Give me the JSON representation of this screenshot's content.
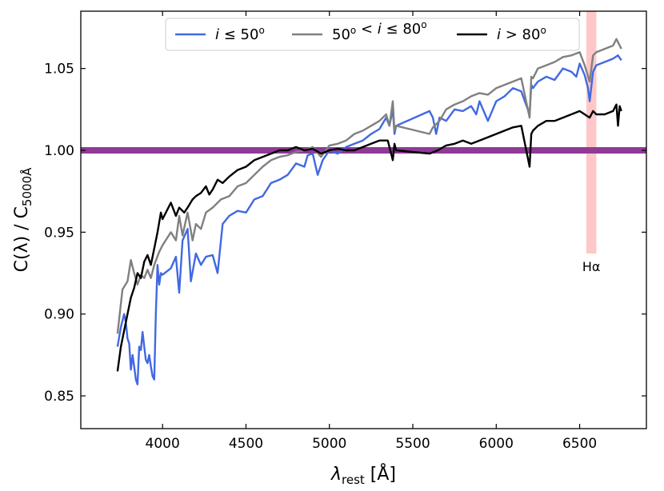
{
  "chart_data": {
    "type": "line",
    "title": "",
    "xlabel": {
      "main": "λ",
      "sub": "rest",
      "unit": " [Å]"
    },
    "ylabel": {
      "main": "C(λ) / C",
      "sub": "5000Å"
    },
    "xlim": [
      3510,
      6900
    ],
    "ylim": [
      0.83,
      1.085
    ],
    "xticks": [
      4000,
      4500,
      5000,
      5500,
      6000,
      6500
    ],
    "xtick_labels": [
      "4000",
      "4500",
      "5000",
      "5500",
      "6000",
      "6500"
    ],
    "yticks": [
      0.85,
      0.9,
      0.95,
      1.0,
      1.05
    ],
    "ytick_labels": [
      "0.85",
      "0.90",
      "0.95",
      "1.00",
      "1.05"
    ],
    "grid": false,
    "legend_position": "top-center",
    "reference_line": {
      "y": 1.0,
      "color": "#8e3a96"
    },
    "annotations": [
      {
        "label": "Hα",
        "x_range": [
          6540,
          6600
        ],
        "y_range": [
          0.937,
          1.085
        ],
        "color": "#ffc7c7"
      }
    ],
    "series": [
      {
        "name": "i ≤ 50º",
        "legend_parts": [
          "i",
          " ≤ 50",
          "o"
        ],
        "color": "#4169e1",
        "x": [
          3730,
          3750,
          3770,
          3780,
          3790,
          3800,
          3810,
          3820,
          3830,
          3840,
          3850,
          3860,
          3870,
          3880,
          3890,
          3900,
          3910,
          3920,
          3930,
          3940,
          3950,
          3960,
          3970,
          3980,
          3990,
          4000,
          4050,
          4080,
          4100,
          4120,
          4150,
          4170,
          4200,
          4230,
          4260,
          4300,
          4330,
          4360,
          4400,
          4450,
          4500,
          4550,
          4600,
          4650,
          4700,
          4750,
          4800,
          4850,
          4870,
          4900,
          4930,
          4960,
          5000,
          5050,
          5100,
          5150,
          5200,
          5250,
          5300,
          5340,
          5360,
          5380,
          5390,
          5400,
          5600,
          5620,
          5640,
          5660,
          5700,
          5750,
          5800,
          5850,
          5880,
          5900,
          5950,
          6000,
          6050,
          6100,
          6150,
          6200,
          6210,
          6220,
          6250,
          6300,
          6350,
          6400,
          6450,
          6480,
          6500,
          6530,
          6550,
          6560,
          6580,
          6600,
          6650,
          6700,
          6730,
          6750
        ],
        "y": [
          0.88,
          0.892,
          0.9,
          0.895,
          0.885,
          0.882,
          0.866,
          0.875,
          0.868,
          0.86,
          0.857,
          0.88,
          0.878,
          0.889,
          0.88,
          0.872,
          0.87,
          0.875,
          0.868,
          0.862,
          0.86,
          0.9,
          0.93,
          0.918,
          0.925,
          0.924,
          0.928,
          0.935,
          0.913,
          0.945,
          0.952,
          0.92,
          0.937,
          0.93,
          0.935,
          0.936,
          0.925,
          0.955,
          0.96,
          0.963,
          0.962,
          0.97,
          0.972,
          0.98,
          0.982,
          0.985,
          0.992,
          0.99,
          0.997,
          0.998,
          0.985,
          0.994,
          1.0,
          0.998,
          1.002,
          1.004,
          1.006,
          1.01,
          1.013,
          1.02,
          1.015,
          1.025,
          1.01,
          1.015,
          1.024,
          1.02,
          1.01,
          1.02,
          1.018,
          1.025,
          1.024,
          1.027,
          1.022,
          1.03,
          1.018,
          1.03,
          1.033,
          1.038,
          1.036,
          1.022,
          1.04,
          1.038,
          1.042,
          1.045,
          1.043,
          1.05,
          1.048,
          1.045,
          1.053,
          1.046,
          1.038,
          1.03,
          1.048,
          1.052,
          1.054,
          1.056,
          1.058,
          1.055
        ]
      },
      {
        "name": "50º < i ≤ 80º",
        "legend_parts": [
          "50",
          "o",
          " < ",
          "i",
          " ≤ 80",
          "o"
        ],
        "color": "#808080",
        "x": [
          3730,
          3760,
          3790,
          3810,
          3830,
          3850,
          3870,
          3890,
          3910,
          3930,
          3950,
          3980,
          4000,
          4050,
          4080,
          4100,
          4120,
          4150,
          4180,
          4200,
          4230,
          4260,
          4300,
          4350,
          4400,
          4450,
          4500,
          4550,
          4600,
          4650,
          4700,
          4750,
          4800,
          4850,
          4900,
          4950,
          5000,
          5050,
          5100,
          5150,
          5200,
          5250,
          5300,
          5340,
          5360,
          5380,
          5390,
          5400,
          5600,
          5620,
          5660,
          5700,
          5750,
          5800,
          5850,
          5900,
          5950,
          6000,
          6050,
          6100,
          6150,
          6200,
          6210,
          6220,
          6250,
          6300,
          6350,
          6400,
          6450,
          6500,
          6530,
          6560,
          6580,
          6600,
          6650,
          6700,
          6720,
          6750
        ],
        "y": [
          0.888,
          0.915,
          0.92,
          0.933,
          0.925,
          0.918,
          0.924,
          0.922,
          0.927,
          0.922,
          0.93,
          0.938,
          0.942,
          0.95,
          0.945,
          0.96,
          0.948,
          0.962,
          0.945,
          0.955,
          0.952,
          0.962,
          0.965,
          0.97,
          0.972,
          0.978,
          0.98,
          0.985,
          0.99,
          0.994,
          0.996,
          0.997,
          0.999,
          1.0,
          1.002,
          0.996,
          1.003,
          1.004,
          1.006,
          1.01,
          1.012,
          1.015,
          1.018,
          1.022,
          1.015,
          1.03,
          1.012,
          1.015,
          1.01,
          1.014,
          1.018,
          1.025,
          1.028,
          1.03,
          1.033,
          1.035,
          1.034,
          1.038,
          1.04,
          1.042,
          1.044,
          1.02,
          1.045,
          1.044,
          1.05,
          1.052,
          1.054,
          1.057,
          1.058,
          1.06,
          1.052,
          1.042,
          1.058,
          1.06,
          1.062,
          1.064,
          1.068,
          1.062
        ]
      },
      {
        "name": "i > 80º",
        "legend_parts": [
          "i",
          " > 80",
          "o"
        ],
        "color": "#000000",
        "x": [
          3730,
          3750,
          3770,
          3790,
          3810,
          3830,
          3850,
          3870,
          3890,
          3910,
          3930,
          3950,
          3970,
          3990,
          4000,
          4050,
          4080,
          4100,
          4130,
          4150,
          4180,
          4200,
          4230,
          4260,
          4280,
          4300,
          4330,
          4360,
          4400,
          4450,
          4500,
          4550,
          4600,
          4650,
          4700,
          4750,
          4800,
          4850,
          4900,
          4950,
          5000,
          5050,
          5100,
          5150,
          5200,
          5250,
          5300,
          5350,
          5380,
          5390,
          5400,
          5600,
          5650,
          5700,
          5750,
          5800,
          5850,
          5900,
          5950,
          6000,
          6050,
          6100,
          6150,
          6200,
          6210,
          6220,
          6250,
          6300,
          6350,
          6400,
          6450,
          6500,
          6530,
          6560,
          6580,
          6600,
          6650,
          6700,
          6720,
          6730,
          6740,
          6750
        ],
        "y": [
          0.865,
          0.88,
          0.89,
          0.9,
          0.91,
          0.916,
          0.925,
          0.922,
          0.932,
          0.936,
          0.93,
          0.94,
          0.95,
          0.962,
          0.958,
          0.968,
          0.96,
          0.965,
          0.962,
          0.965,
          0.97,
          0.972,
          0.974,
          0.978,
          0.973,
          0.976,
          0.982,
          0.98,
          0.984,
          0.988,
          0.99,
          0.994,
          0.996,
          0.998,
          1.0,
          1.0,
          1.002,
          1.0,
          1.001,
          0.998,
          1.0,
          1.001,
          1.0,
          1.0,
          1.002,
          1.004,
          1.006,
          1.006,
          0.994,
          1.004,
          1.0,
          0.998,
          1.0,
          1.003,
          1.004,
          1.006,
          1.004,
          1.006,
          1.008,
          1.01,
          1.012,
          1.014,
          1.015,
          0.99,
          1.01,
          1.012,
          1.015,
          1.018,
          1.018,
          1.02,
          1.022,
          1.024,
          1.022,
          1.02,
          1.024,
          1.022,
          1.022,
          1.024,
          1.028,
          1.015,
          1.027,
          1.024
        ]
      }
    ]
  }
}
